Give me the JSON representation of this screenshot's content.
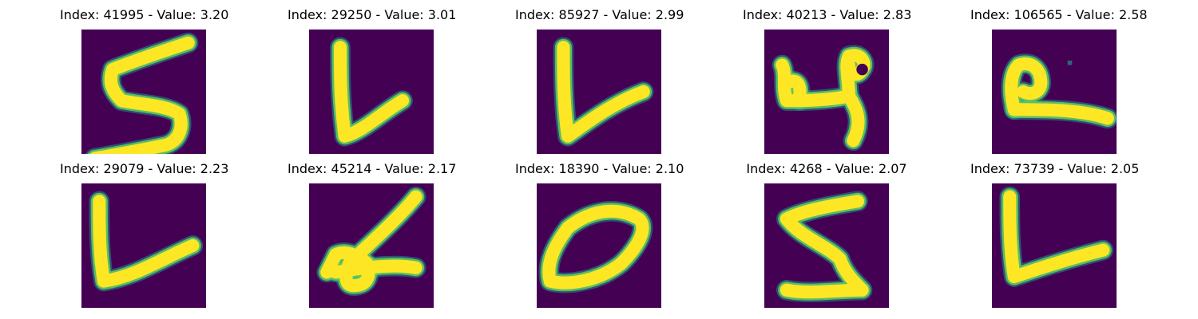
{
  "colors": {
    "background": "#440154",
    "stroke_edge": "#21918c",
    "stroke_mid": "#5ec962",
    "stroke_core": "#fde725"
  },
  "panels": [
    {
      "title": "Index: 41995 - Value: 3.20",
      "index": 41995,
      "value": 3.2,
      "glyph": "5"
    },
    {
      "title": "Index: 29250 - Value: 3.01",
      "index": 29250,
      "value": 3.01,
      "glyph": "L"
    },
    {
      "title": "Index: 85927 - Value: 2.99",
      "index": 85927,
      "value": 2.99,
      "glyph": "L"
    },
    {
      "title": "Index: 40213 - Value: 2.83",
      "index": 40213,
      "value": 2.83,
      "glyph": "4"
    },
    {
      "title": "Index: 106565 - Value: 2.58",
      "index": 106565,
      "value": 2.58,
      "glyph": "P"
    },
    {
      "title": "Index: 29079 - Value: 2.23",
      "index": 29079,
      "value": 2.23,
      "glyph": "L"
    },
    {
      "title": "Index: 45214 - Value: 2.17",
      "index": 45214,
      "value": 2.17,
      "glyph": "4"
    },
    {
      "title": "Index: 18390 - Value: 2.10",
      "index": 18390,
      "value": 2.1,
      "glyph": "0"
    },
    {
      "title": "Index: 4268 - Value: 2.07",
      "index": 4268,
      "value": 2.07,
      "glyph": "5"
    },
    {
      "title": "Index: 73739 - Value: 2.05",
      "index": 73739,
      "value": 2.05,
      "glyph": "L"
    }
  ]
}
